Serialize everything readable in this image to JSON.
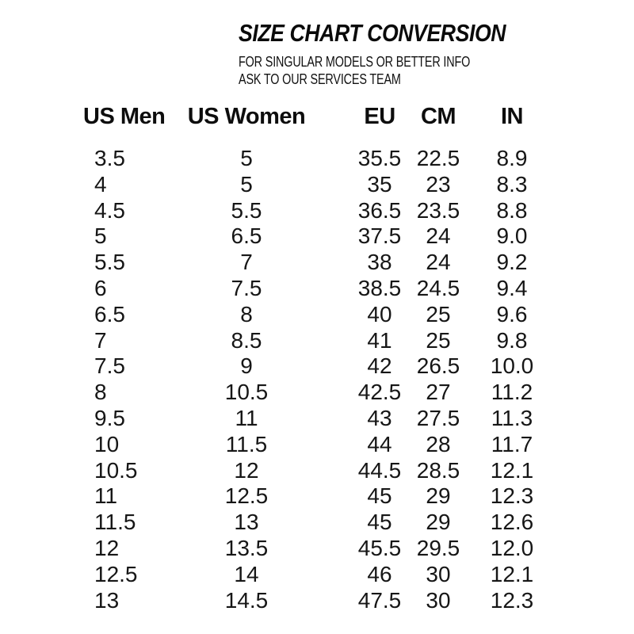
{
  "header": {
    "title": "SIZE CHART CONVERSION",
    "subtitle_line1": "FOR SINGULAR MODELS OR BETTER INFO",
    "subtitle_line2": "ASK TO OUR SERVICES TEAM"
  },
  "colors": {
    "background": "#ffffff",
    "text": "#141414"
  },
  "chart_data": {
    "type": "table",
    "title": "SIZE CHART CONVERSION",
    "columns": [
      "US Men",
      "US Women",
      "EU",
      "CM",
      "IN"
    ],
    "rows": [
      [
        "3.5",
        "5",
        "35.5",
        "22.5",
        "8.9"
      ],
      [
        "4",
        "5",
        "35",
        "23",
        "8.3"
      ],
      [
        "4.5",
        "5.5",
        "36.5",
        "23.5",
        "8.8"
      ],
      [
        "5",
        "6.5",
        "37.5",
        "24",
        "9.0"
      ],
      [
        "5.5",
        "7",
        "38",
        "24",
        "9.2"
      ],
      [
        "6",
        "7.5",
        "38.5",
        "24.5",
        "9.4"
      ],
      [
        "6.5",
        "8",
        "40",
        "25",
        "9.6"
      ],
      [
        "7",
        "8.5",
        "41",
        "25",
        "9.8"
      ],
      [
        "7.5",
        "9",
        "42",
        "26.5",
        "10.0"
      ],
      [
        "8",
        "10.5",
        "42.5",
        "27",
        "11.2"
      ],
      [
        "9.5",
        "11",
        "43",
        "27.5",
        "11.3"
      ],
      [
        "10",
        "11.5",
        "44",
        "28",
        "11.7"
      ],
      [
        "10.5",
        "12",
        "44.5",
        "28.5",
        "12.1"
      ],
      [
        "11",
        "12.5",
        "45",
        "29",
        "12.3"
      ],
      [
        "11.5",
        "13",
        "45",
        "29",
        "12.6"
      ],
      [
        "12",
        "13.5",
        "45.5",
        "29.5",
        "12.0"
      ],
      [
        "12.5",
        "14",
        "46",
        "30",
        "12.1"
      ],
      [
        "13",
        "14.5",
        "47.5",
        "30",
        "12.3"
      ]
    ]
  }
}
